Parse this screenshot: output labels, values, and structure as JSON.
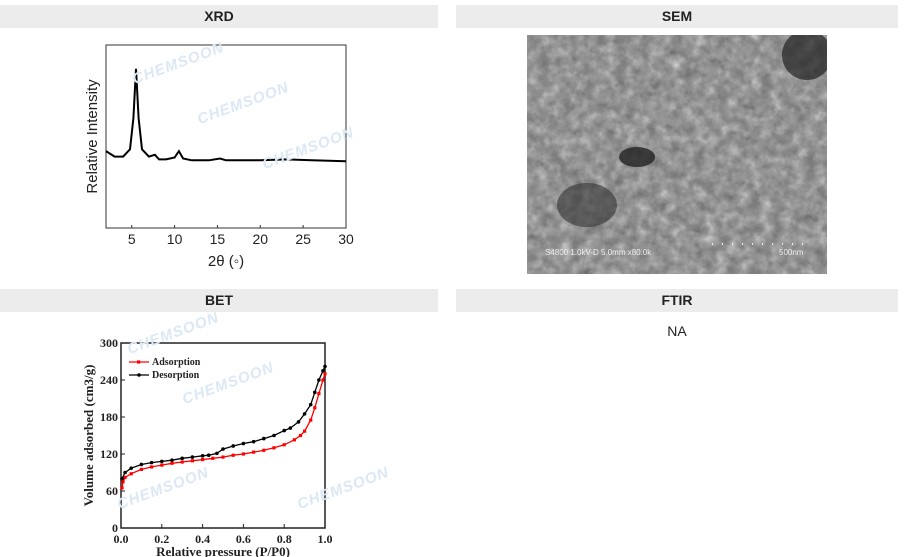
{
  "sections": {
    "xrd": {
      "title": "XRD"
    },
    "sem": {
      "title": "SEM",
      "caption": "S4800 1.0kV-D 5.0mm x80.0k",
      "scale_label": "500nm"
    },
    "bet": {
      "title": "BET"
    },
    "ftir": {
      "title": "FTIR",
      "value": "NA"
    }
  },
  "watermark": "CHEMSOON",
  "chart_data": [
    {
      "type": "line",
      "xlabel": "2θ (◦)",
      "ylabel": "Relative Intensity",
      "xlim": [
        2,
        30
      ],
      "ylim": [
        0,
        1
      ],
      "xticks": [
        5,
        10,
        15,
        20,
        25,
        30
      ],
      "grid": false,
      "series": [
        {
          "color": "#000000",
          "points": [
            [
              2,
              0.42
            ],
            [
              3,
              0.39
            ],
            [
              4,
              0.39
            ],
            [
              4.8,
              0.43
            ],
            [
              5.2,
              0.6
            ],
            [
              5.5,
              0.87
            ],
            [
              5.8,
              0.6
            ],
            [
              6.2,
              0.43
            ],
            [
              7,
              0.39
            ],
            [
              7.7,
              0.4
            ],
            [
              8.2,
              0.375
            ],
            [
              9,
              0.375
            ],
            [
              10,
              0.385
            ],
            [
              10.5,
              0.42
            ],
            [
              11,
              0.38
            ],
            [
              12,
              0.37
            ],
            [
              14,
              0.37
            ],
            [
              15.3,
              0.38
            ],
            [
              16,
              0.37
            ],
            [
              20,
              0.37
            ],
            [
              23,
              0.375
            ],
            [
              26,
              0.37
            ],
            [
              30,
              0.365
            ]
          ]
        }
      ]
    },
    {
      "type": "line",
      "xlabel": "Relative pressure  (P/P0)",
      "ylabel": "Volume adsorbed (cm3/g)",
      "xlim": [
        0,
        1
      ],
      "ylim": [
        0,
        300
      ],
      "xticks": [
        0.0,
        0.2,
        0.4,
        0.6,
        0.8,
        1.0
      ],
      "yticks": [
        0,
        60,
        120,
        180,
        240,
        300
      ],
      "legend": "top-left",
      "series": [
        {
          "name": "Adsorption",
          "color": "#ff0000",
          "points": [
            [
              0.005,
              65
            ],
            [
              0.01,
              75
            ],
            [
              0.02,
              82
            ],
            [
              0.05,
              88
            ],
            [
              0.1,
              95
            ],
            [
              0.15,
              99
            ],
            [
              0.2,
              102
            ],
            [
              0.25,
              105
            ],
            [
              0.3,
              107
            ],
            [
              0.35,
              109
            ],
            [
              0.4,
              111
            ],
            [
              0.45,
              113
            ],
            [
              0.5,
              115
            ],
            [
              0.55,
              118
            ],
            [
              0.6,
              120
            ],
            [
              0.65,
              123
            ],
            [
              0.7,
              126
            ],
            [
              0.75,
              130
            ],
            [
              0.8,
              135
            ],
            [
              0.85,
              143
            ],
            [
              0.88,
              150
            ],
            [
              0.9,
              157
            ],
            [
              0.93,
              175
            ],
            [
              0.95,
              195
            ],
            [
              0.97,
              218
            ],
            [
              0.99,
              240
            ],
            [
              1.0,
              250
            ]
          ]
        },
        {
          "name": "Desorption",
          "color": "#000000",
          "points": [
            [
              1.0,
              262
            ],
            [
              0.99,
              255
            ],
            [
              0.97,
              240
            ],
            [
              0.95,
              220
            ],
            [
              0.93,
              200
            ],
            [
              0.9,
              185
            ],
            [
              0.87,
              172
            ],
            [
              0.83,
              162
            ],
            [
              0.8,
              158
            ],
            [
              0.75,
              150
            ],
            [
              0.7,
              145
            ],
            [
              0.65,
              140
            ],
            [
              0.6,
              137
            ],
            [
              0.55,
              133
            ],
            [
              0.5,
              128
            ],
            [
              0.47,
              121
            ],
            [
              0.43,
              118
            ],
            [
              0.4,
              117
            ],
            [
              0.35,
              115
            ],
            [
              0.3,
              113
            ],
            [
              0.25,
              110
            ],
            [
              0.2,
              108
            ],
            [
              0.15,
              106
            ],
            [
              0.1,
              103
            ],
            [
              0.05,
              97
            ],
            [
              0.02,
              90
            ],
            [
              0.005,
              80
            ]
          ]
        }
      ]
    }
  ]
}
